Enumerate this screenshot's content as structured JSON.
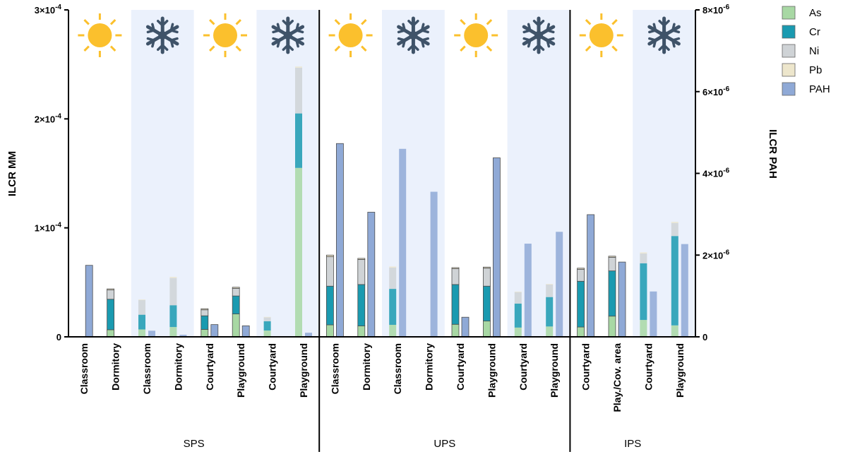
{
  "chart_data": {
    "type": "bar",
    "ylabel_left": "ILCR MM",
    "ylabel_right": "ILCR PAH",
    "left_ticks": [
      "0",
      "1×10",
      "2×10",
      "3×10"
    ],
    "left_ticks_exp": [
      "",
      "-4",
      "-4",
      "-4"
    ],
    "left_tick_values": [
      0,
      0.0001,
      0.0002,
      0.0003
    ],
    "right_ticks": [
      "0",
      "2×10",
      "4×10",
      "6×10",
      "8×10"
    ],
    "right_ticks_exp": [
      "",
      "-6",
      "-6",
      "-6",
      "-6"
    ],
    "right_tick_values": [
      0,
      2e-06,
      4e-06,
      6e-06,
      8e-06
    ],
    "ylim_left": [
      0,
      0.0003
    ],
    "ylim_right": [
      0,
      8e-06
    ],
    "legend": [
      {
        "name": "As",
        "color": "#a8d8a4"
      },
      {
        "name": "Cr",
        "color": "#1a9ab0"
      },
      {
        "name": "Ni",
        "color": "#cfd3d6"
      },
      {
        "name": "Pb",
        "color": "#ede6cc"
      },
      {
        "name": "PAH",
        "color": "#8fa9d6"
      }
    ],
    "season_icons": [
      "sun-icon",
      "snowflake-icon",
      "sun-icon",
      "snowflake-icon",
      "sun-icon",
      "snowflake-icon",
      "sun-icon",
      "snowflake-icon",
      "sun-icon",
      "snowflake-icon"
    ],
    "groups": [
      {
        "name": "SPS",
        "categories": 8
      },
      {
        "name": "UPS",
        "categories": 8
      },
      {
        "name": "IPS",
        "categories": 4
      }
    ],
    "categories": [
      "Classroom",
      "Dormitory",
      "Classroom",
      "Dormitory",
      "Courtyard",
      "Playground",
      "Courtyard",
      "Playground",
      "Classroom",
      "Dormitory",
      "Classroom",
      "Dormitory",
      "Courtyard",
      "Playground",
      "Courtyard",
      "Playground",
      "Courtyard",
      "Play./Cov. area",
      "Courtyard",
      "Playground"
    ],
    "season": [
      "summer",
      "summer",
      "winter",
      "winter",
      "summer",
      "summer",
      "winter",
      "winter",
      "summer",
      "summer",
      "winter",
      "winter",
      "summer",
      "summer",
      "winter",
      "winter",
      "summer",
      "summer",
      "winter",
      "winter"
    ],
    "series": [
      {
        "name": "As",
        "axis": "left",
        "values": [
          0,
          6.5e-06,
          6.8e-06,
          9e-06,
          6.8e-06,
          2.1e-05,
          5.8e-06,
          0.000155,
          1.1e-05,
          1e-05,
          1.1e-05,
          0,
          1.15e-05,
          1.45e-05,
          8.5e-06,
          9.5e-06,
          9e-06,
          1.9e-05,
          1.55e-05,
          1.05e-05
        ]
      },
      {
        "name": "Cr",
        "axis": "left",
        "values": [
          0,
          2.8e-05,
          1.35e-05,
          2e-05,
          1.25e-05,
          1.65e-05,
          8.5e-06,
          5e-05,
          3.55e-05,
          3.8e-05,
          3.3e-05,
          0,
          3.65e-05,
          3.2e-05,
          2.2e-05,
          2.7e-05,
          4.2e-05,
          4.15e-05,
          5.2e-05,
          8.2e-05
        ]
      },
      {
        "name": "Ni",
        "axis": "left",
        "values": [
          0,
          8.5e-06,
          1.35e-05,
          2.5e-05,
          5.5e-06,
          7e-06,
          3.5e-06,
          4.2e-05,
          2.7e-05,
          2.3e-05,
          1.95e-05,
          0,
          1.45e-05,
          1.65e-05,
          1.05e-05,
          1.15e-05,
          1.1e-05,
          1.25e-05,
          9e-06,
          1.2e-05
        ]
      },
      {
        "name": "Pb",
        "axis": "left",
        "values": [
          0,
          1e-06,
          5e-07,
          1e-06,
          1e-06,
          1e-06,
          5e-07,
          1e-06,
          1.5e-06,
          1e-06,
          1e-06,
          0,
          1e-06,
          1e-06,
          5e-07,
          5e-07,
          1e-06,
          1e-06,
          1e-06,
          1e-06
        ]
      },
      {
        "name": "PAH",
        "axis": "right",
        "values": [
          1.75e-06,
          0,
          1.5e-07,
          5e-08,
          3e-07,
          2.7e-07,
          0,
          1e-07,
          4.73e-06,
          3.05e-06,
          4.6e-06,
          3.55e-06,
          4.8e-07,
          4.38e-06,
          2.28e-06,
          2.57e-06,
          2.99e-06,
          1.83e-06,
          1.11e-06,
          2.27e-06
        ]
      }
    ]
  }
}
